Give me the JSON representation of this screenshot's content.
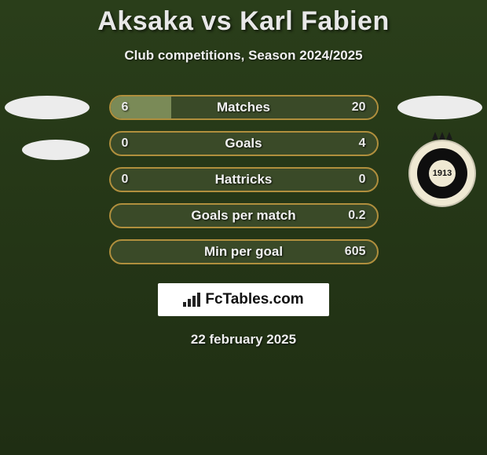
{
  "title": "Aksaka vs Karl Fabien",
  "subtitle": "Club competitions, Season 2024/2025",
  "date": "22 february 2025",
  "branding": {
    "label": "FcTables.com"
  },
  "colors": {
    "bar_border": "#b08f3d",
    "bar_bg": "#3a4a28",
    "fill_highlight": "#7a8a57",
    "background_top": "#2a3e1a",
    "background_bottom": "#1f2e13",
    "text": "#eaeaea"
  },
  "badge": {
    "year": "1913"
  },
  "bars": [
    {
      "label": "Matches",
      "left": "6",
      "right": "20",
      "left_pct": 23,
      "right_pct": 77,
      "layout": "split"
    },
    {
      "label": "Goals",
      "left": "0",
      "right": "4",
      "left_pct": 0,
      "right_pct": 100,
      "layout": "plain"
    },
    {
      "label": "Hattricks",
      "left": "0",
      "right": "0",
      "left_pct": 0,
      "right_pct": 0,
      "layout": "plain"
    },
    {
      "label": "Goals per match",
      "left": "",
      "right": "0.2",
      "left_pct": 0,
      "right_pct": 0,
      "layout": "plain"
    },
    {
      "label": "Min per goal",
      "left": "",
      "right": "605",
      "left_pct": 0,
      "right_pct": 0,
      "layout": "plain"
    }
  ]
}
